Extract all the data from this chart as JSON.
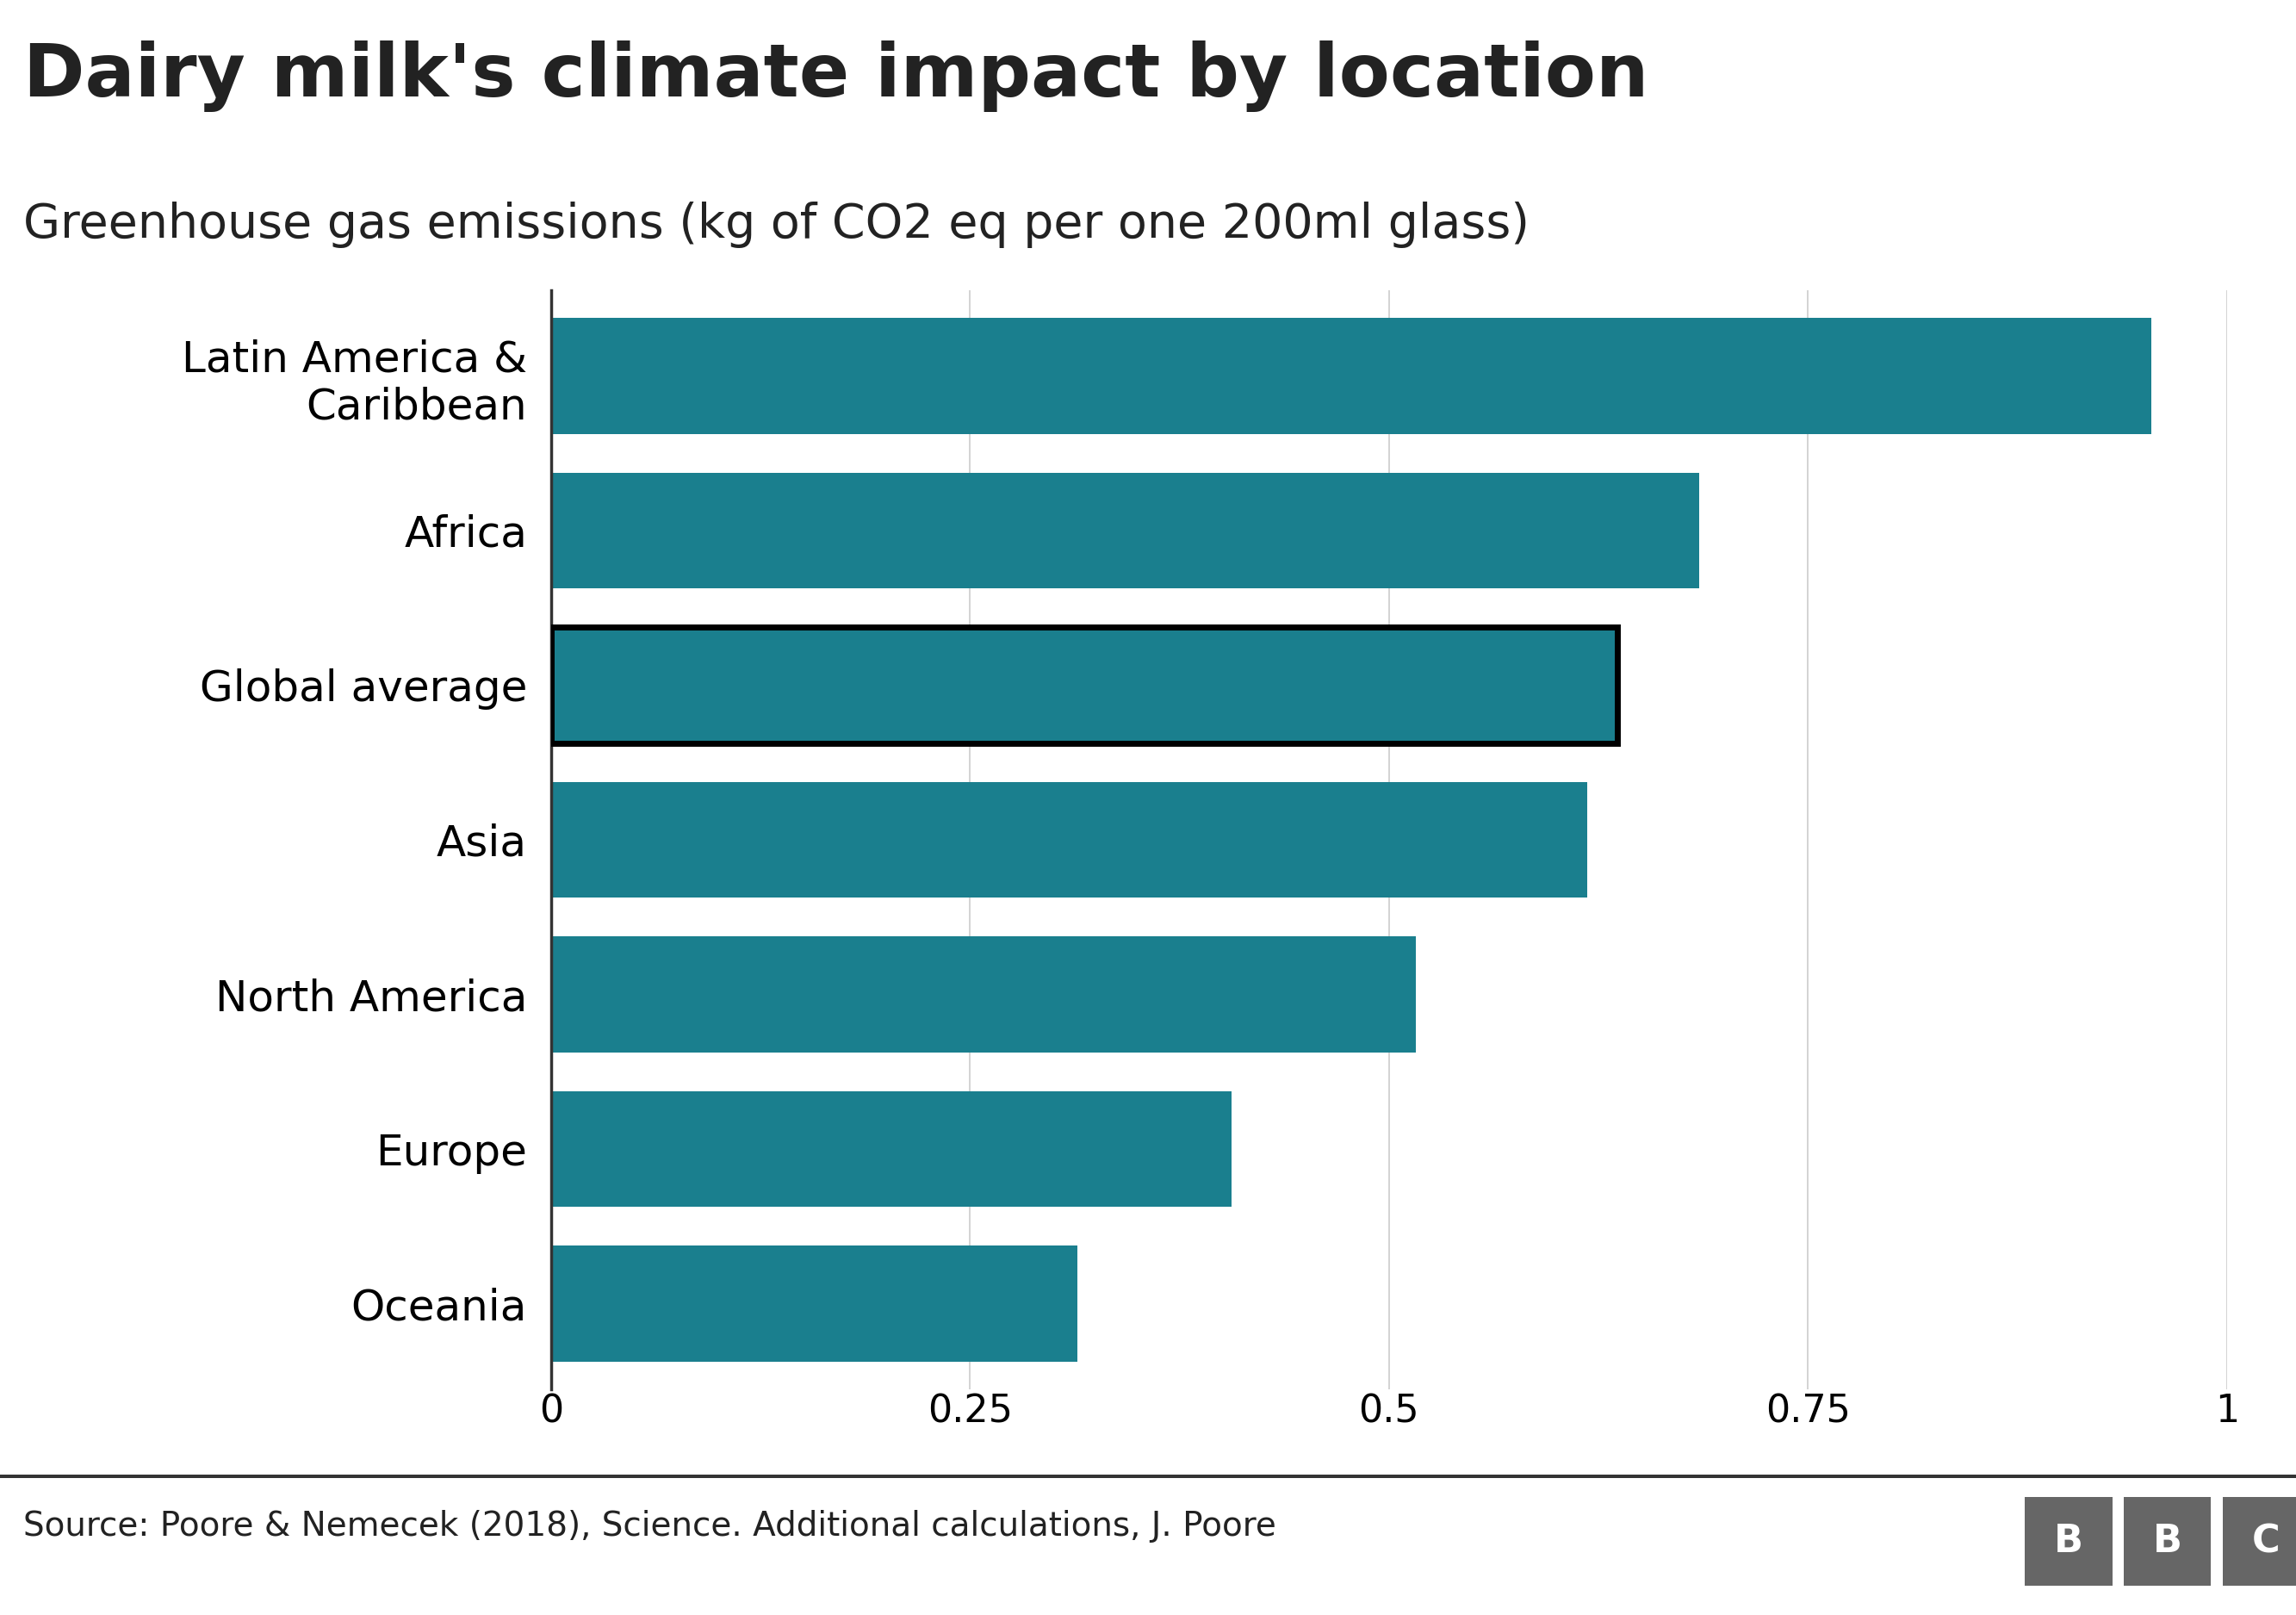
{
  "title": "Dairy milk's climate impact by location",
  "subtitle": "Greenhouse gas emissions (kg of CO2 eq per one 200ml glass)",
  "categories": [
    "Latin America &\nCaribbean",
    "Africa",
    "Global average",
    "Asia",
    "North America",
    "Europe",
    "Oceania"
  ],
  "values": [
    0.955,
    0.685,
    0.636,
    0.618,
    0.516,
    0.406,
    0.314
  ],
  "bar_color": "#1a7f8e",
  "background_color": "#ffffff",
  "xlim": [
    0,
    1.0
  ],
  "xticks": [
    0,
    0.25,
    0.5,
    0.75,
    1.0
  ],
  "xtick_labels": [
    "0",
    "0.25",
    "0.5",
    "0.75",
    "1"
  ],
  "source_text": "Source: Poore & Nemecek (2018), Science. Additional calculations, J. Poore",
  "bbc_logo": "BBC",
  "global_avg_index": 2,
  "title_fontsize": 62,
  "subtitle_fontsize": 40,
  "tick_fontsize": 32,
  "ytick_fontsize": 36,
  "source_fontsize": 28,
  "bbc_box_color": "#666666"
}
